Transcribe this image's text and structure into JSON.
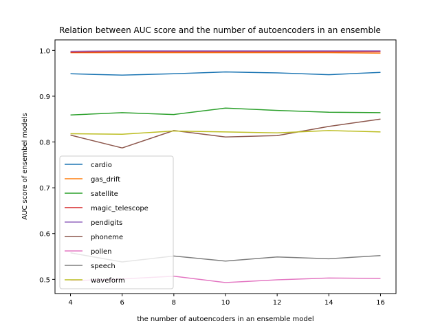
{
  "chart_data": {
    "type": "line",
    "title": "Relation between AUC score and the number of autoencoders in an ensemble",
    "xlabel": "the number of autoencoders in an ensemble model",
    "ylabel": "AUC score of ensembel models",
    "x": [
      4,
      6,
      8,
      10,
      12,
      14,
      16
    ],
    "xticks": [
      4,
      6,
      8,
      10,
      12,
      14,
      16
    ],
    "yticks": [
      0.5,
      0.6,
      0.7,
      0.8,
      0.9,
      1.0
    ],
    "ytick_labels": [
      "0.5",
      "0.6",
      "0.7",
      "0.8",
      "0.9",
      "1.0"
    ],
    "xlim": [
      3.4,
      16.6
    ],
    "ylim": [
      0.469,
      1.023
    ],
    "grid": false,
    "legend_position": "lower-left",
    "series": [
      {
        "name": "cardio",
        "color": "#1f77b4",
        "values": [
          0.949,
          0.946,
          0.949,
          0.953,
          0.951,
          0.947,
          0.952
        ]
      },
      {
        "name": "gas_drift",
        "color": "#ff7f0e",
        "values": [
          0.995,
          0.995,
          0.995,
          0.995,
          0.995,
          0.995,
          0.994
        ]
      },
      {
        "name": "satellite",
        "color": "#2ca02c",
        "values": [
          0.859,
          0.864,
          0.86,
          0.874,
          0.869,
          0.865,
          0.864
        ]
      },
      {
        "name": "magic_telescope",
        "color": "#d62728",
        "values": [
          0.996,
          0.997,
          0.997,
          0.997,
          0.997,
          0.997,
          0.997
        ]
      },
      {
        "name": "pendigits",
        "color": "#9467bd",
        "values": [
          0.998,
          0.999,
          0.999,
          0.999,
          0.999,
          0.999,
          0.999
        ]
      },
      {
        "name": "phoneme",
        "color": "#8c564b",
        "values": [
          0.815,
          0.787,
          0.825,
          0.811,
          0.814,
          0.834,
          0.85
        ]
      },
      {
        "name": "pollen",
        "color": "#e377c2",
        "values": [
          0.497,
          0.501,
          0.507,
          0.493,
          0.499,
          0.503,
          0.502
        ]
      },
      {
        "name": "speech",
        "color": "#7f7f7f",
        "values": [
          0.558,
          0.538,
          0.551,
          0.54,
          0.549,
          0.545,
          0.552
        ]
      },
      {
        "name": "waveform",
        "color": "#bcbd22",
        "values": [
          0.818,
          0.817,
          0.824,
          0.822,
          0.82,
          0.825,
          0.822
        ]
      }
    ]
  }
}
